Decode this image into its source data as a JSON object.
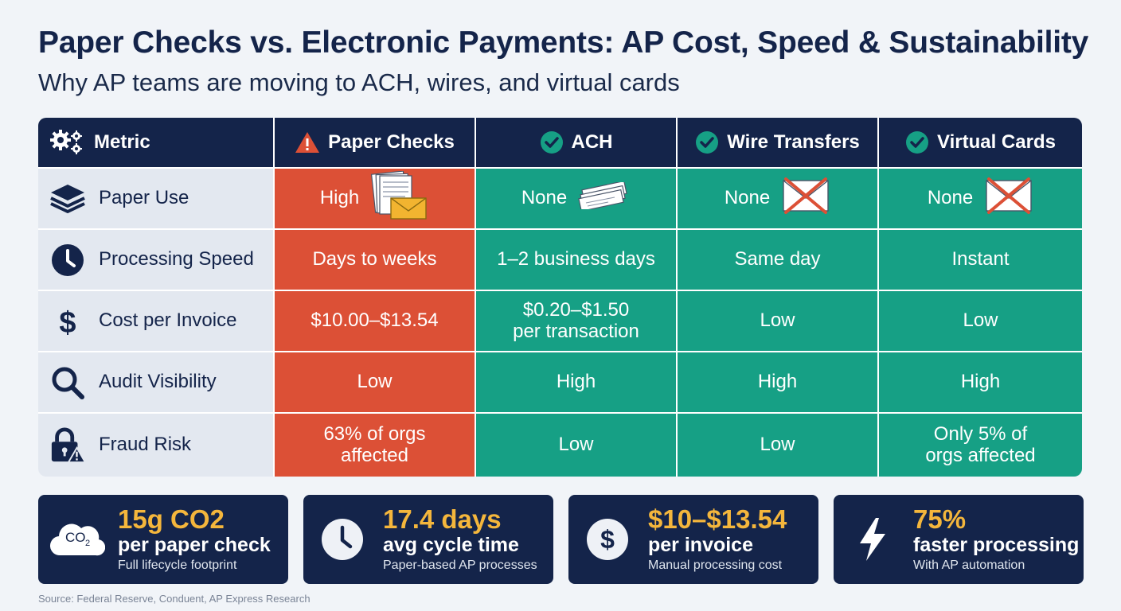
{
  "title": "Paper Checks vs. Electronic Payments: AP Cost, Speed & Sustainability",
  "subtitle": "Why AP teams are moving to ACH, wires, and virtual cards",
  "colors": {
    "navy": "#14244a",
    "paper_red": "#dc5036",
    "electronic_green": "#16a085",
    "metric_bg": "#e3e8f0",
    "accent_gold": "#f4b63c"
  },
  "table": {
    "headers": [
      {
        "label": "Metric",
        "icon": "gears-icon"
      },
      {
        "label": "Paper Checks",
        "icon": "warning-icon"
      },
      {
        "label": "ACH",
        "icon": "check-circle-icon"
      },
      {
        "label": "Wire Transfers",
        "icon": "check-circle-icon"
      },
      {
        "label": "Virtual Cards",
        "icon": "check-circle-icon"
      }
    ],
    "rows": [
      {
        "metric": "Paper Use",
        "icon": "stack-layers-icon",
        "values": [
          "High",
          "None",
          "None",
          "None"
        ],
        "images": [
          "paper-stack-envelope-icon",
          "check-slips-icon",
          "crossed-envelope-icon",
          "crossed-envelope-icon"
        ]
      },
      {
        "metric": "Processing Speed",
        "icon": "clock-icon",
        "values": [
          "Days to weeks",
          "1–2 business days",
          "Same day",
          "Instant"
        ]
      },
      {
        "metric": "Cost per Invoice",
        "icon": "dollar-icon",
        "values": [
          "$10.00–$13.54",
          "$0.20–$1.50\nper transaction",
          "Low",
          "Low"
        ]
      },
      {
        "metric": "Audit Visibility",
        "icon": "magnifier-icon",
        "values": [
          "Low",
          "High",
          "High",
          "High"
        ]
      },
      {
        "metric": "Fraud Risk",
        "icon": "lock-warning-icon",
        "values": [
          "63% of orgs\naffected",
          "Low",
          "Low",
          "Only 5% of\norgs affected"
        ]
      }
    ]
  },
  "cards": [
    {
      "big": "15g CO2",
      "mid": "per paper check",
      "small": "Full lifecycle footprint",
      "icon": "co2-cloud-icon",
      "icon_text": "CO"
    },
    {
      "big": "17.4 days",
      "mid": "avg cycle time",
      "small": "Paper-based AP processes",
      "icon": "clock-icon"
    },
    {
      "big": "$10–$13.54",
      "mid": "per invoice",
      "small": "Manual processing cost",
      "icon": "dollar-icon"
    },
    {
      "big": "75%",
      "mid": "faster processing",
      "small": "With AP automation",
      "icon": "lightning-icon"
    }
  ],
  "source": "Source: Federal Reserve, Conduent, AP Express Research"
}
